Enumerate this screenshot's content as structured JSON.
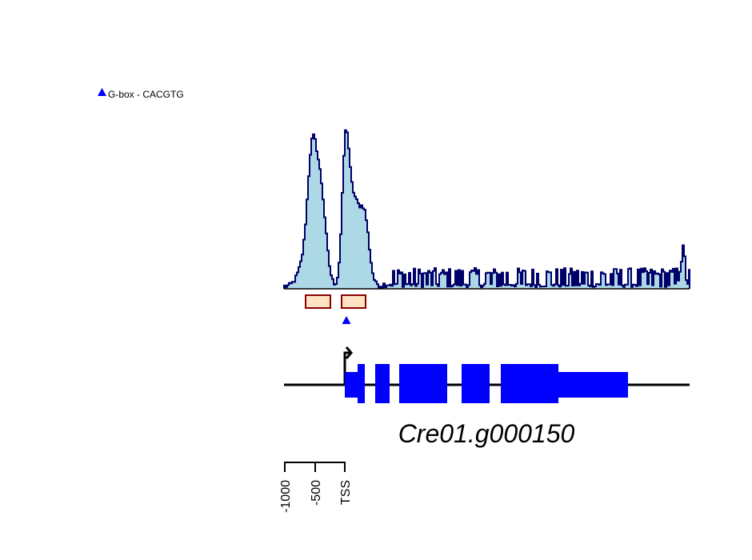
{
  "legend": {
    "marker_color": "#0000ff",
    "label": "G-box  -  CACGTG"
  },
  "gene": {
    "name": "Cre01.g000150",
    "color": "#0000ff",
    "strand": "+"
  },
  "signal": {
    "fill_color": "#add8e6",
    "line_color": "#000080",
    "peak_region_fill": "#ffe4c4",
    "peak_region_stroke": "#8b0000"
  },
  "axis": {
    "ticks": [
      "-1000",
      "-500",
      "TSS"
    ]
  }
}
